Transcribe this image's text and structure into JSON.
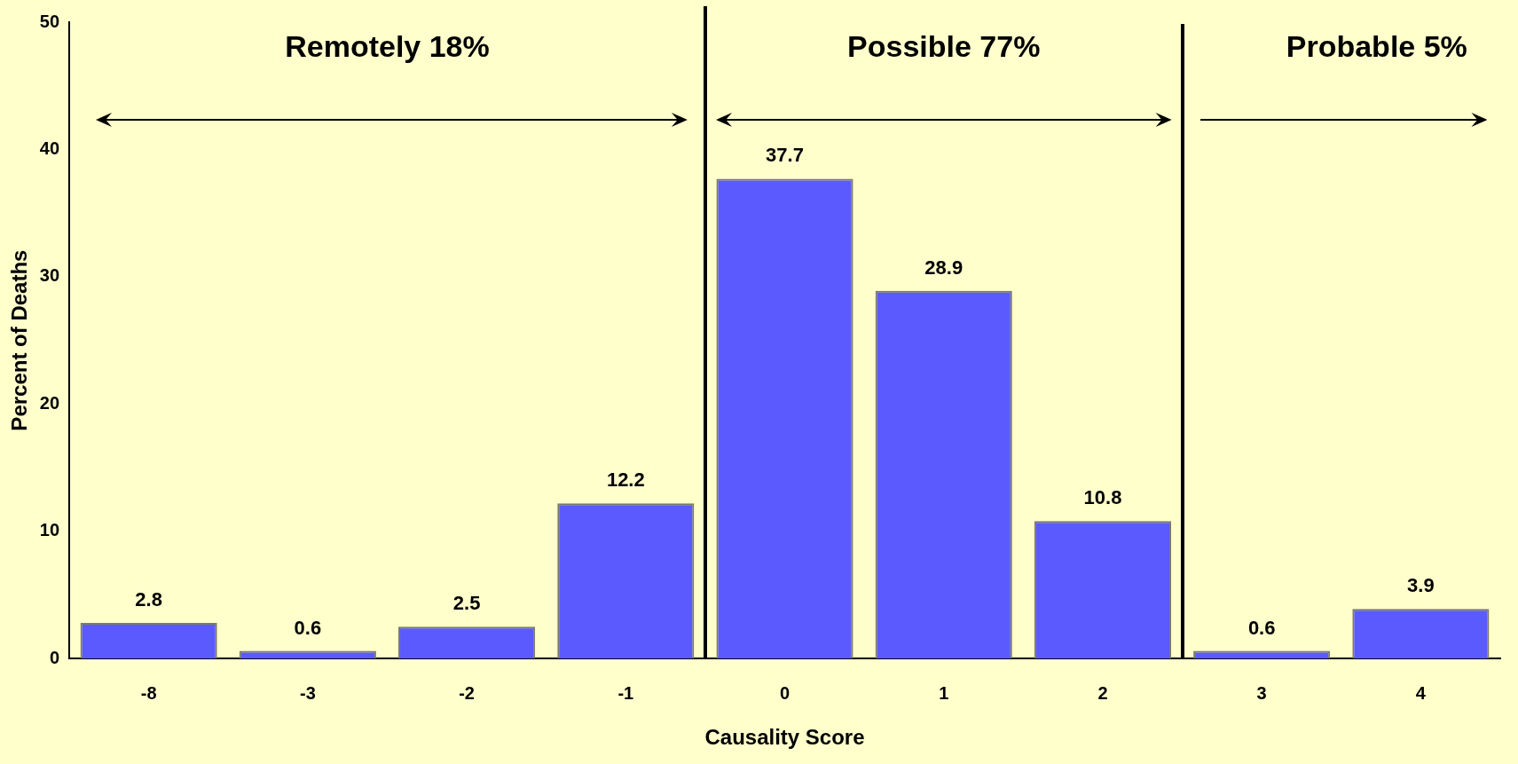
{
  "chart_data": {
    "type": "bar",
    "xlabel": "Causality Score",
    "ylabel": "Percent of Deaths",
    "categories": [
      "-8",
      "-3",
      "-2",
      "-1",
      "0",
      "1",
      "2",
      "3",
      "4"
    ],
    "values": [
      2.8,
      0.6,
      2.5,
      12.2,
      37.7,
      28.9,
      10.8,
      0.6,
      3.9
    ],
    "color": "#5a5aff",
    "data_labels": true,
    "ylim": [
      0,
      50
    ],
    "yticks": [
      0,
      10,
      20,
      30,
      40,
      50
    ],
    "grid": false,
    "legend": false,
    "annotations": [
      "Remotely 18%",
      "Possible 77%",
      "Probable 5%"
    ]
  }
}
